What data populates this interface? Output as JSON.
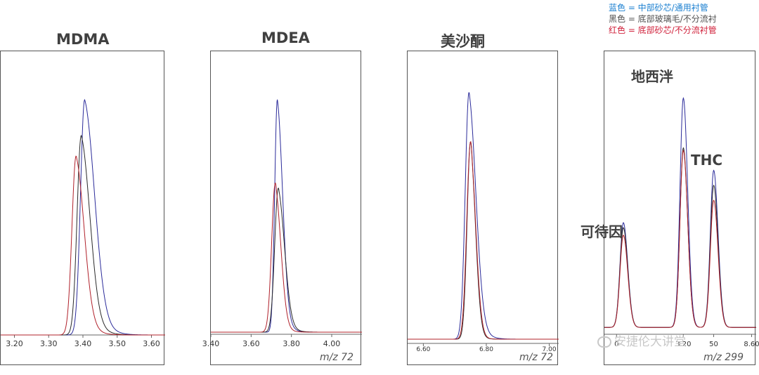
{
  "legend": {
    "blue": "蓝色 = 中部砂芯/通用衬管",
    "black": "黑色 = 底部玻璃毛/不分流衬",
    "red": "红色 = 底部砂芯/不分流衬管"
  },
  "colors": {
    "blue": "#2b2b9a",
    "black": "#2a2a2a",
    "red": "#b0202a",
    "legend_blue": "#1a7fd0",
    "legend_red": "#d0203a"
  },
  "watermark": "安捷伦大讲堂",
  "chart_data": [
    {
      "type": "line",
      "title": "MDMA",
      "mz_label": "",
      "xlim": [
        3.16,
        3.64
      ],
      "ticks": [
        "3.20",
        "3.30",
        "3.40",
        "3.50",
        "3.60"
      ],
      "series": [
        {
          "color": "blue",
          "peak_x": 3.405,
          "peak_y": 0.92,
          "width": 0.012,
          "tail": 0.05
        },
        {
          "color": "black",
          "peak_x": 3.395,
          "peak_y": 0.78,
          "width": 0.012,
          "tail": 0.04
        },
        {
          "color": "red",
          "peak_x": 3.38,
          "peak_y": 0.7,
          "width": 0.012,
          "tail": 0.035
        }
      ]
    },
    {
      "type": "line",
      "title": "MDEA",
      "mz_label": "m/z 72",
      "xlim": [
        3.4,
        4.15
      ],
      "ticks": [
        "3.40",
        "3.60",
        "3.80",
        "4.00"
      ],
      "series": [
        {
          "color": "blue",
          "peak_x": 3.73,
          "peak_y": 0.92,
          "width": 0.013,
          "tail": 0.04
        },
        {
          "color": "black",
          "peak_x": 3.735,
          "peak_y": 0.57,
          "width": 0.018,
          "tail": 0.04
        },
        {
          "color": "red",
          "peak_x": 3.72,
          "peak_y": 0.59,
          "width": 0.018,
          "tail": 0.03
        }
      ]
    },
    {
      "type": "line",
      "title": "美沙酮",
      "mz_label": "m/z 72",
      "xlim": [
        6.55,
        7.03
      ],
      "ticks": [
        "6.60",
        "6.80",
        "7.00"
      ],
      "series": [
        {
          "color": "blue",
          "peak_x": 6.745,
          "peak_y": 0.95,
          "width": 0.012,
          "tail": 0.03
        },
        {
          "color": "black",
          "peak_x": 6.75,
          "peak_y": 0.76,
          "width": 0.011,
          "tail": 0.015
        },
        {
          "color": "red",
          "peak_x": 6.75,
          "peak_y": 0.76,
          "width": 0.012,
          "tail": 0.015
        }
      ]
    },
    {
      "type": "line",
      "title": "",
      "mz_label": "m/z 299",
      "xlim": [
        2.95,
        8.75
      ],
      "ticks": [
        "0",
        "3.20",
        "50",
        "8.60"
      ],
      "annotations": [
        "可待因",
        "地西泮",
        "THC"
      ],
      "series": [
        {
          "color": "blue",
          "peaks": [
            [
              0.125,
              0.42
            ],
            [
              0.52,
              0.92
            ],
            [
              0.72,
              0.63
            ]
          ]
        },
        {
          "color": "black",
          "peaks": [
            [
              0.125,
              0.4
            ],
            [
              0.52,
              0.72
            ],
            [
              0.72,
              0.57
            ]
          ]
        },
        {
          "color": "red",
          "peaks": [
            [
              0.125,
              0.37
            ],
            [
              0.52,
              0.71
            ],
            [
              0.72,
              0.51
            ]
          ]
        }
      ]
    }
  ]
}
